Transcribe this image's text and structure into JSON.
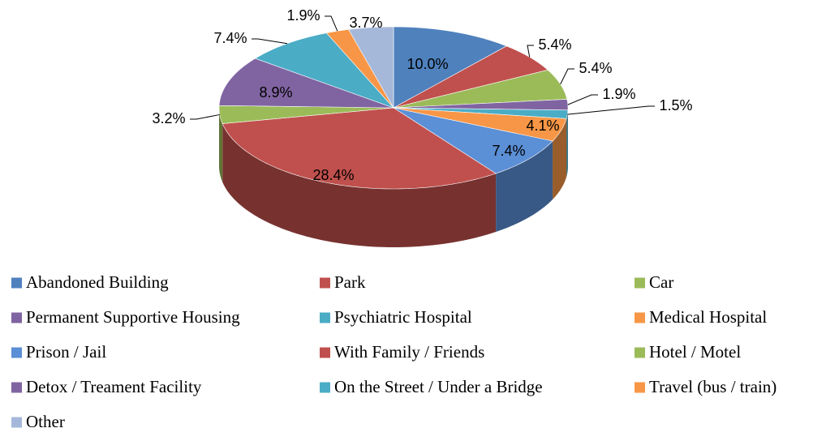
{
  "chart_data": {
    "type": "pie",
    "three_d": true,
    "categories": [
      "Abandoned Building",
      "Park",
      "Car",
      "Permanent Supportive Housing",
      "Psychiatric Hospital",
      "Medical Hospital",
      "Prison / Jail",
      "With Family / Friends",
      "Hotel / Motel",
      "Detox / Treament Facility",
      "On the Street / Under a Bridge",
      "Travel (bus / train)",
      "Other"
    ],
    "values": [
      10.0,
      5.4,
      5.4,
      1.9,
      1.5,
      4.1,
      7.4,
      28.4,
      3.2,
      8.9,
      7.4,
      1.9,
      3.7
    ],
    "value_labels": [
      "10.0%",
      "5.4%",
      "5.4%",
      "1.9%",
      "1.5%",
      "4.1%",
      "7.4%",
      "28.4%",
      "3.2%",
      "8.9%",
      "7.4%",
      "1.9%",
      "3.7%"
    ],
    "colors": [
      "#4f81bd",
      "#c0504d",
      "#9bbb59",
      "#8064a2",
      "#4bacc6",
      "#f79646",
      "#5b8fd6",
      "#c0504d",
      "#9bbb59",
      "#8064a2",
      "#4bacc6",
      "#f79646",
      "#a5b8da"
    ],
    "legend": "bottom"
  }
}
